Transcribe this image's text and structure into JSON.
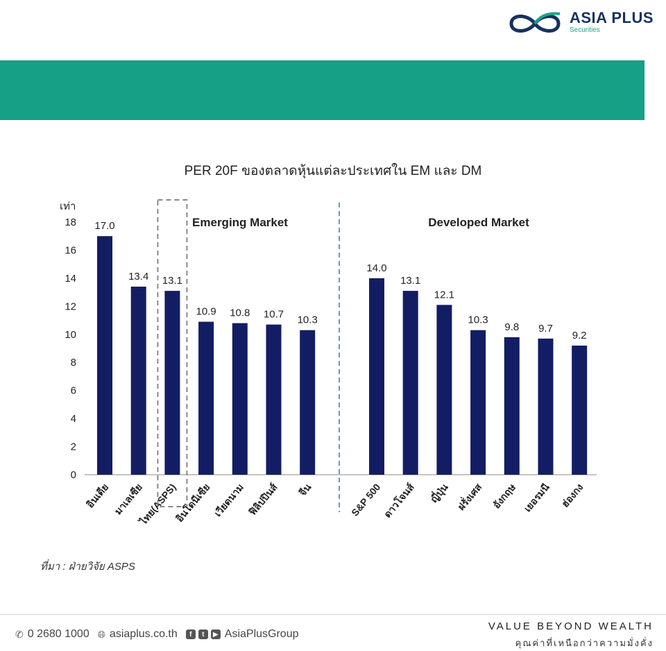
{
  "brand": {
    "name": "ASIA PLUS",
    "sub": "Securities"
  },
  "chart_data": {
    "type": "bar",
    "title": "PER 20F ของตลาดหุ้นแต่ละประเทศใน EM และ DM",
    "ylabel": "เท่า",
    "ylim": [
      0,
      18
    ],
    "yticks": [
      0,
      2,
      4,
      6,
      8,
      10,
      12,
      14,
      16,
      18
    ],
    "grid": false,
    "groups": [
      {
        "name": "Emerging Market",
        "categories": [
          "อินเดีย",
          "มาเลเซีย",
          "ไทย(ASPS)",
          "อินโดนีเซีย",
          "เวียดนาม",
          "ฟิลิปปินส์",
          "จีน"
        ],
        "values": [
          17.0,
          13.4,
          13.1,
          10.9,
          10.8,
          10.7,
          10.3
        ],
        "labels": [
          "17.0",
          "13.4",
          "13.1",
          "10.9",
          "10.8",
          "10.7",
          "10.3"
        ]
      },
      {
        "name": "Developed Market",
        "categories": [
          "S&P 500",
          "ดาวโจนส์",
          "ญี่ปุ่น",
          "ฝรั่งเศส",
          "อังกฤษ",
          "เยอรมนี",
          "ฮ่องกง"
        ],
        "values": [
          14.0,
          13.1,
          12.1,
          10.3,
          9.8,
          9.7,
          9.2
        ],
        "labels": [
          "14.0",
          "13.1",
          "12.1",
          "10.3",
          "9.8",
          "9.7",
          "9.2"
        ]
      }
    ],
    "highlight": "ไทย(ASPS)",
    "bar_color": "#131d63"
  },
  "source": "ที่มา : ฝ่ายวิจัย ASPS",
  "footer": {
    "phone": "0 2680 1000",
    "website": "asiaplus.co.th",
    "social": "AsiaPlusGroup",
    "tagline": "VALUE BEYOND WEALTH",
    "tagline_th": "คุณค่าที่เหนือกว่าความมั่งคั่ง"
  },
  "colors": {
    "band": "#16a085",
    "bars": "#131d63",
    "divider": "#5b9bd5"
  }
}
